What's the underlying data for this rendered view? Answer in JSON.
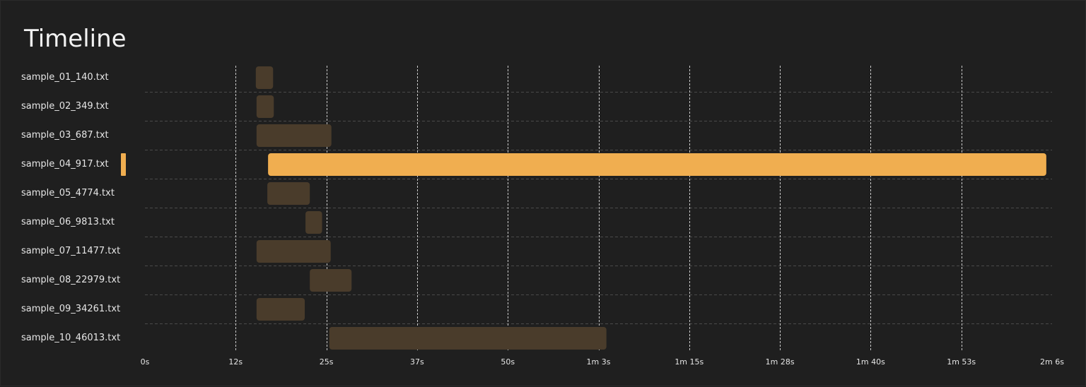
{
  "title": "Timeline",
  "chart_data": {
    "type": "bar",
    "subtype": "timeline-gantt",
    "xlim_seconds": [
      0,
      126
    ],
    "x_ticks": [
      {
        "seconds": 0,
        "label": "0s"
      },
      {
        "seconds": 12.6,
        "label": "12s"
      },
      {
        "seconds": 25.2,
        "label": "25s"
      },
      {
        "seconds": 37.8,
        "label": "37s"
      },
      {
        "seconds": 50.4,
        "label": "50s"
      },
      {
        "seconds": 63,
        "label": "1m 3s"
      },
      {
        "seconds": 75.6,
        "label": "1m 15s"
      },
      {
        "seconds": 88.2,
        "label": "1m 28s"
      },
      {
        "seconds": 100.8,
        "label": "1m 40s"
      },
      {
        "seconds": 113.4,
        "label": "1m 53s"
      },
      {
        "seconds": 126,
        "label": "2m 6s"
      }
    ],
    "categories": [
      "sample_01_140.txt",
      "sample_02_349.txt",
      "sample_03_687.txt",
      "sample_04_917.txt",
      "sample_05_4774.txt",
      "sample_06_9813.txt",
      "sample_07_11477.txt",
      "sample_08_22979.txt",
      "sample_09_34261.txt",
      "sample_10_46013.txt"
    ],
    "bars": [
      {
        "start": 15.4,
        "end": 17.8
      },
      {
        "start": 15.5,
        "end": 17.9
      },
      {
        "start": 15.5,
        "end": 25.9
      },
      {
        "start": 17.1,
        "end": 125.2
      },
      {
        "start": 17.0,
        "end": 22.9
      },
      {
        "start": 22.3,
        "end": 24.6
      },
      {
        "start": 15.5,
        "end": 25.8
      },
      {
        "start": 22.9,
        "end": 28.7
      },
      {
        "start": 15.5,
        "end": 22.2
      },
      {
        "start": 25.6,
        "end": 64.1
      }
    ],
    "highlighted_index": 3,
    "grid": true,
    "colors": {
      "highlight": "#f0ae50",
      "bar": "#4a3c2b",
      "grid_vertical": "#e8e8e8",
      "grid_horizontal": "#4a4a4a",
      "background": "#1f1f1f"
    }
  }
}
